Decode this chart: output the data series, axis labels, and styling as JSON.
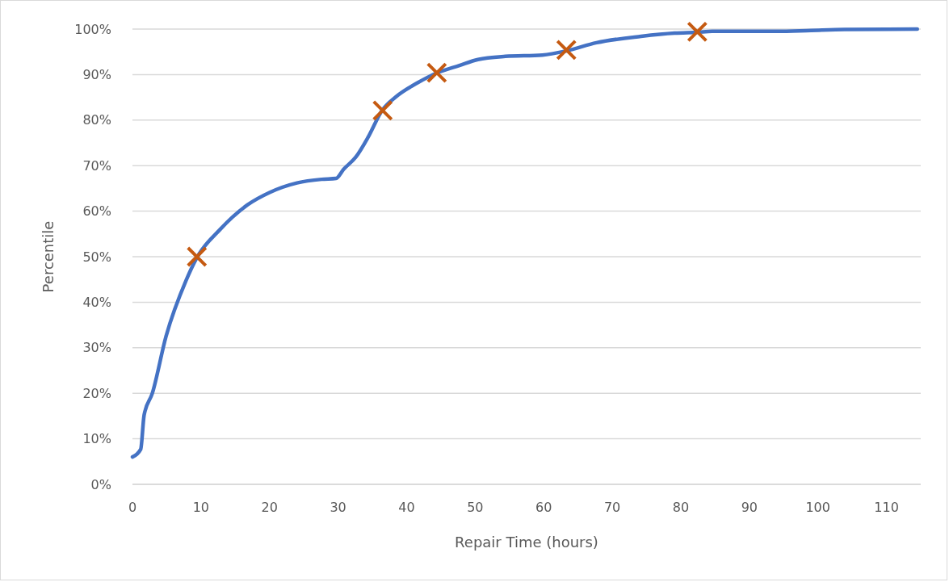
{
  "chart_data": {
    "type": "line",
    "xlabel": "Repair Time (hours)",
    "ylabel": "Percentile",
    "xlim": [
      0,
      115
    ],
    "xticks": [
      0,
      10,
      20,
      30,
      40,
      50,
      60,
      70,
      80,
      90,
      100,
      110
    ],
    "ylim": [
      0,
      100
    ],
    "yticks": [
      {
        "value": 0,
        "label": "0%"
      },
      {
        "value": 10,
        "label": "10%"
      },
      {
        "value": 20,
        "label": "20%"
      },
      {
        "value": 30,
        "label": "30%"
      },
      {
        "value": 40,
        "label": "40%"
      },
      {
        "value": 50,
        "label": "50%"
      },
      {
        "value": 60,
        "label": "60%"
      },
      {
        "value": 70,
        "label": "70%"
      },
      {
        "value": 80,
        "label": "80%"
      },
      {
        "value": 90,
        "label": "90%"
      },
      {
        "value": 100,
        "label": "100%"
      }
    ],
    "grid": "y",
    "series": [
      {
        "color": "#4472c4",
        "line_style": "solid",
        "marker": "none",
        "x": [
          0,
          1.2,
          1.7,
          2.9,
          4.9,
          7.8,
          9.4,
          12.8,
          14.6,
          16.8,
          20,
          24,
          27.6,
          29.7,
          30.8,
          32.6,
          34.4,
          36.4,
          38.5,
          41.6,
          44.3,
          47.7,
          50.4,
          54.4,
          59.8,
          63.3,
          67.7,
          74.2,
          79.1,
          82.4,
          84.6,
          94,
          99,
          103.9,
          114.5
        ],
        "values": [
          6,
          7.7,
          15.2,
          20,
          32.5,
          44.7,
          49.8,
          56,
          58.7,
          61.4,
          64.1,
          66.2,
          67,
          67.2,
          69.2,
          71.9,
          76.3,
          82.1,
          85.2,
          88.2,
          90.3,
          92,
          93.3,
          94,
          94.3,
          95.2,
          97,
          98.4,
          99.1,
          99.3,
          99.5,
          99.5,
          99.7,
          99.9,
          100
        ]
      },
      {
        "type": "scatter",
        "color": "#c55a11",
        "marker": "cross",
        "x": [
          9.4,
          36.5,
          44.4,
          63.3,
          82.4
        ],
        "values": [
          50,
          82.1,
          90.4,
          95.4,
          99.4
        ]
      }
    ]
  }
}
